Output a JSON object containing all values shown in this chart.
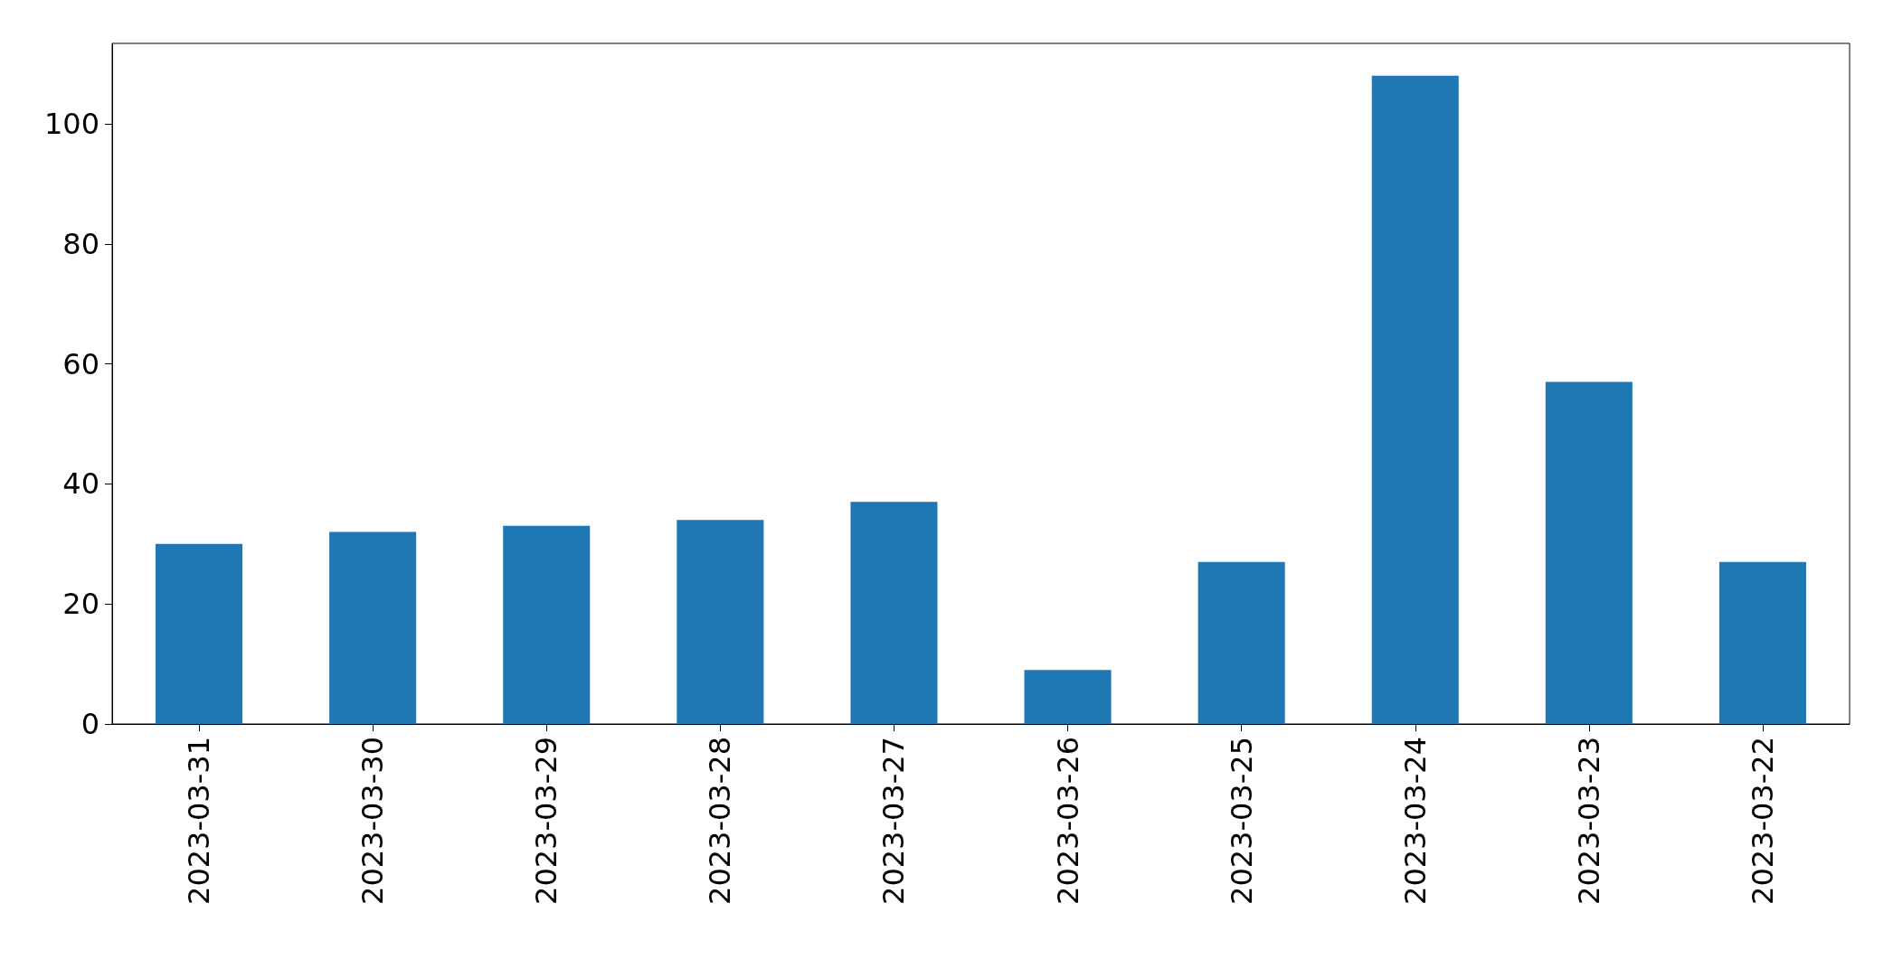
{
  "chart_data": {
    "type": "bar",
    "categories": [
      "2023-03-31",
      "2023-03-30",
      "2023-03-29",
      "2023-03-28",
      "2023-03-27",
      "2023-03-26",
      "2023-03-25",
      "2023-03-24",
      "2023-03-23",
      "2023-03-22"
    ],
    "values": [
      30,
      32,
      33,
      34,
      37,
      9,
      27,
      108,
      57,
      27
    ],
    "color": "#1f77b4",
    "ylim": [
      0,
      113.4
    ],
    "yticks": [
      0,
      20,
      40,
      60,
      80,
      100
    ],
    "grid": false
  }
}
